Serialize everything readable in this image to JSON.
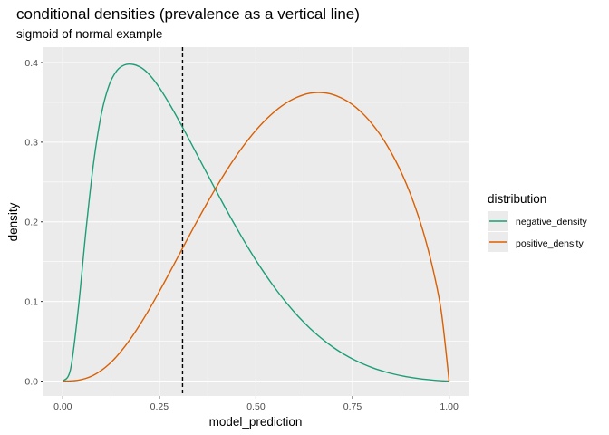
{
  "chart_data": {
    "type": "line",
    "title": "conditional densities (prevalence as a vertical line)",
    "subtitle": "sigmoid of normal example",
    "xlabel": "model_prediction",
    "ylabel": "density",
    "xlim": [
      0,
      1
    ],
    "ylim": [
      0,
      0.4
    ],
    "x_ticks": [
      "0.00",
      "0.25",
      "0.50",
      "0.75",
      "1.00"
    ],
    "y_ticks": [
      "0.0",
      "0.1",
      "0.2",
      "0.3",
      "0.4"
    ],
    "grid": true,
    "legend": {
      "title": "distribution",
      "placement": "right"
    },
    "vline": {
      "x": 0.31,
      "style": "dashed",
      "color": "#000000"
    },
    "x": [
      0,
      0.02,
      0.04,
      0.06,
      0.08,
      0.1,
      0.12,
      0.14,
      0.16,
      0.18,
      0.2,
      0.22,
      0.24,
      0.26,
      0.28,
      0.3,
      0.32,
      0.34,
      0.36,
      0.38,
      0.4,
      0.42,
      0.44,
      0.46,
      0.48,
      0.5,
      0.52,
      0.54,
      0.56,
      0.58,
      0.6,
      0.62,
      0.64,
      0.66,
      0.68,
      0.7,
      0.72,
      0.74,
      0.76,
      0.78,
      0.8,
      0.82,
      0.84,
      0.86,
      0.88,
      0.9,
      0.92,
      0.94,
      0.96,
      0.98,
      1.0
    ],
    "series": [
      {
        "name": "negative_density",
        "color": "#1b9e77",
        "values": [
          0,
          0.0147,
          0.0903,
          0.1894,
          0.2753,
          0.3357,
          0.3717,
          0.3898,
          0.397,
          0.3978,
          0.3944,
          0.3868,
          0.3753,
          0.3609,
          0.3448,
          0.3276,
          0.3097,
          0.2914,
          0.2729,
          0.2545,
          0.2362,
          0.2182,
          0.2007,
          0.1837,
          0.1673,
          0.1517,
          0.1369,
          0.1229,
          0.1098,
          0.0976,
          0.0862,
          0.0758,
          0.0662,
          0.0575,
          0.0496,
          0.0424,
          0.036,
          0.0303,
          0.0253,
          0.0209,
          0.017,
          0.0137,
          0.0108,
          0.0084,
          0.0063,
          0.0046,
          0.0032,
          0.002,
          0.0011,
          0.0004,
          0
        ]
      },
      {
        "name": "positive_density",
        "color": "#d95f02",
        "values": [
          0,
          0.0002,
          0.0011,
          0.0034,
          0.0074,
          0.0134,
          0.0213,
          0.0312,
          0.043,
          0.0563,
          0.0711,
          0.087,
          0.1039,
          0.1215,
          0.1395,
          0.1577,
          0.176,
          0.1941,
          0.2118,
          0.229,
          0.2456,
          0.2614,
          0.2764,
          0.2903,
          0.3032,
          0.315,
          0.3256,
          0.3349,
          0.343,
          0.3497,
          0.355,
          0.359,
          0.3615,
          0.3624,
          0.3618,
          0.3597,
          0.3558,
          0.3504,
          0.3432,
          0.3342,
          0.3233,
          0.3105,
          0.2955,
          0.2781,
          0.258,
          0.2347,
          0.2076,
          0.1755,
          0.1367,
          0.0865,
          0
        ]
      }
    ]
  }
}
